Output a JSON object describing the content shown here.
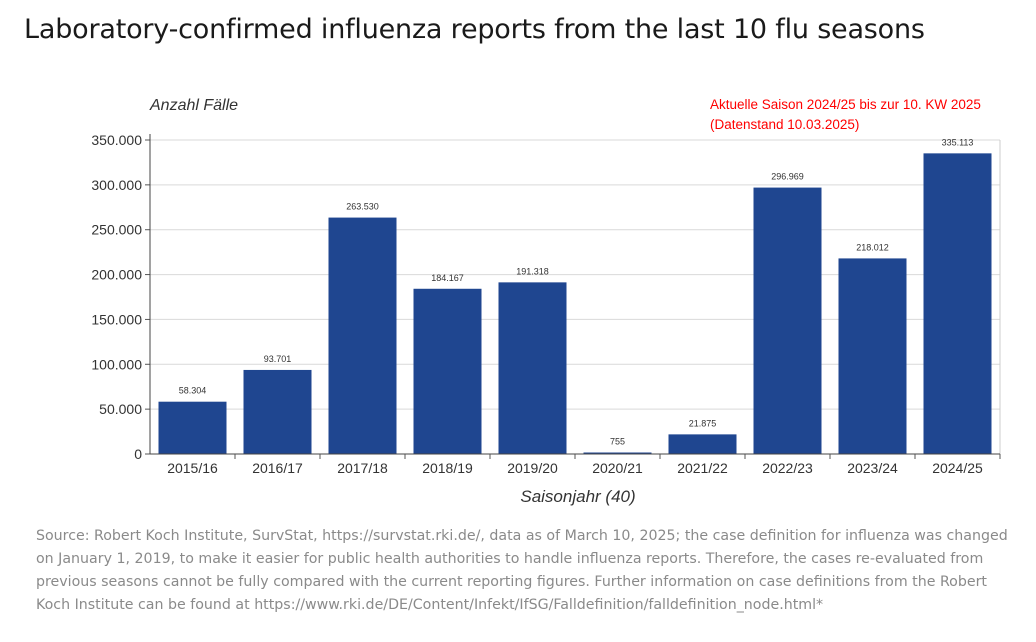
{
  "page": {
    "title": "Laboratory-confirmed influenza reports from the last 10 flu seasons",
    "source": "Source: Robert Koch Institute, SurvStat, https://survstat.rki.de/, data as of March 10, 2025; the case definition for influenza was changed on January 1, 2019, to make it easier for public health authorities to handle influenza reports. Therefore, the cases re-evaluated from previous seasons cannot be fully compared with the current reporting figures. Further information on case definitions from the Robert Koch Institute can be found at https://www.rki.de/DE/Content/Infekt/IfSG/Falldefinition/falldefinition_node.html*"
  },
  "chart_data": {
    "type": "bar",
    "ylabel": "Anzahl Fälle",
    "xlabel": "Saisonjahr (40)",
    "annotation": [
      "Aktuelle Saison 2024/25 bis zur 10. KW 2025",
      "(Datenstand 10.03.2025)"
    ],
    "categories": [
      "2015/16",
      "2016/17",
      "2017/18",
      "2018/19",
      "2019/20",
      "2020/21",
      "2021/22",
      "2022/23",
      "2023/24",
      "2024/25"
    ],
    "values": [
      58304,
      93701,
      263530,
      184167,
      191318,
      755,
      21875,
      296969,
      218012,
      335113
    ],
    "value_labels": [
      "58.304",
      "93.701",
      "263.530",
      "184.167",
      "191.318",
      "755",
      "21.875",
      "296.969",
      "218.012",
      "335.113"
    ],
    "ylim": [
      0,
      350000
    ],
    "yticks": [
      0,
      50000,
      100000,
      150000,
      200000,
      250000,
      300000,
      350000
    ],
    "ytick_labels": [
      "0",
      "50.000",
      "100.000",
      "150.000",
      "200.000",
      "250.000",
      "300.000",
      "350.000"
    ],
    "grid": true,
    "legend": "none",
    "colors": {
      "bar": "#1f4690",
      "grid": "#d9d9d9",
      "annotation": "#ff0000",
      "axis_text": "#333333"
    }
  }
}
